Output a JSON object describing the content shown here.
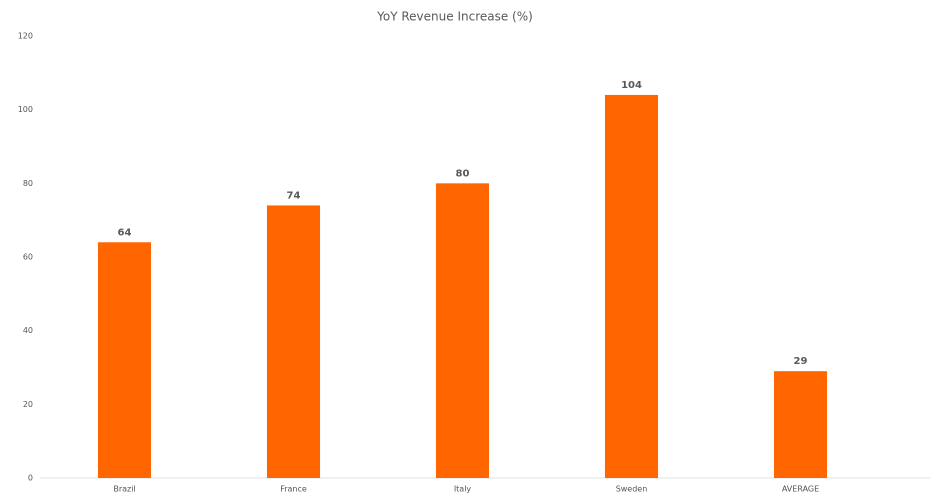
{
  "chart_data": {
    "type": "bar",
    "title": "YoY Revenue Increase (%)",
    "categories": [
      "Brazil",
      "France",
      "Italy",
      "Sweden",
      "AVERAGE"
    ],
    "values": [
      64,
      74,
      80,
      104,
      29
    ],
    "color": "#ff6600",
    "ylim": [
      0,
      120
    ],
    "yticks": [
      0,
      20,
      40,
      60,
      80,
      100,
      120
    ],
    "grid": false
  }
}
